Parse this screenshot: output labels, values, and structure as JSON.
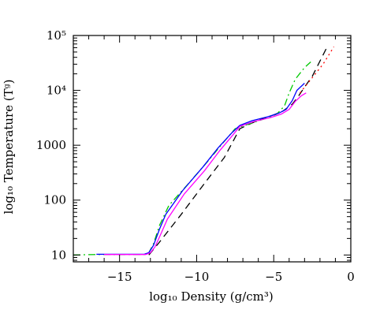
{
  "chart_data": {
    "type": "line",
    "xlabel": "log₁₀ Density (g/cm³)",
    "ylabel": "log₁₀ Temperature (Tᵍ)",
    "xlim": [
      -18,
      0
    ],
    "ylim_log10": [
      0.875,
      5.0
    ],
    "y_scale": "log",
    "x_ticks": [
      {
        "value": -15,
        "label": "−15"
      },
      {
        "value": -10,
        "label": "−10"
      },
      {
        "value": -5,
        "label": "−5"
      },
      {
        "value": 0,
        "label": "0"
      }
    ],
    "y_ticks": [
      {
        "value": 10,
        "label": "10"
      },
      {
        "value": 100,
        "label": "100"
      },
      {
        "value": 1000,
        "label": "1000"
      },
      {
        "value": 10000,
        "label": "10⁴"
      },
      {
        "value": 100000,
        "label": "10⁵"
      }
    ],
    "series": [
      {
        "color": "#000000",
        "style": "dashed",
        "x": [
          -13.1,
          -12.5,
          -11,
          -9.5,
          -8.2,
          -7.2,
          -6.2,
          -5.2,
          -4.4,
          -3.8,
          -3.4,
          -3.0,
          -2.5,
          -1.5
        ],
        "y": [
          10,
          16,
          55,
          200,
          600,
          2000,
          2700,
          3400,
          4200,
          5600,
          7800,
          11500,
          18000,
          65000
        ]
      },
      {
        "color": "#ff0000",
        "style": "dotted",
        "x": [
          -3.3,
          -2.5,
          -1.8,
          -1.1
        ],
        "y": [
          9000,
          17000,
          30000,
          62000
        ]
      },
      {
        "color": "#00c800",
        "style": "dashdot",
        "x": [
          -18,
          -16.5,
          -13.4,
          -13.1,
          -12.8,
          -12.4,
          -11.8,
          -10.6,
          -9.3,
          -8.3,
          -7.5,
          -6.5,
          -5.5,
          -4.8,
          -4.3,
          -4.0,
          -3.6,
          -3.0,
          -2.6
        ],
        "y": [
          10,
          10.2,
          10.2,
          11,
          16,
          35,
          80,
          190,
          500,
          1100,
          2000,
          2500,
          3100,
          3700,
          5200,
          9000,
          16000,
          26000,
          33000
        ]
      },
      {
        "color": "#0000ff",
        "style": "solid",
        "x": [
          -16.5,
          -13.4,
          -13.1,
          -12.8,
          -12.4,
          -12.0,
          -10.9,
          -9.6,
          -8.6,
          -7.7,
          -7.2,
          -6.4,
          -5.4,
          -4.7,
          -4.2,
          -3.8,
          -3.5,
          -3.0
        ],
        "y": [
          10.3,
          10.3,
          11,
          15,
          30,
          55,
          150,
          400,
          900,
          1700,
          2300,
          2800,
          3300,
          3800,
          4500,
          6500,
          10000,
          13500
        ]
      },
      {
        "color": "#ff00ff",
        "style": "solid",
        "x": [
          -16.0,
          -13.3,
          -13.0,
          -12.7,
          -12.3,
          -11.9,
          -10.8,
          -9.5,
          -8.5,
          -7.6,
          -7.2,
          -6.3,
          -5.2,
          -4.5,
          -4.0,
          -3.6,
          -3.2,
          -2.9
        ],
        "y": [
          10.2,
          10.2,
          11,
          14,
          25,
          45,
          130,
          340,
          800,
          1600,
          2200,
          2700,
          3200,
          3700,
          4500,
          6300,
          8000,
          9000
        ]
      }
    ]
  }
}
